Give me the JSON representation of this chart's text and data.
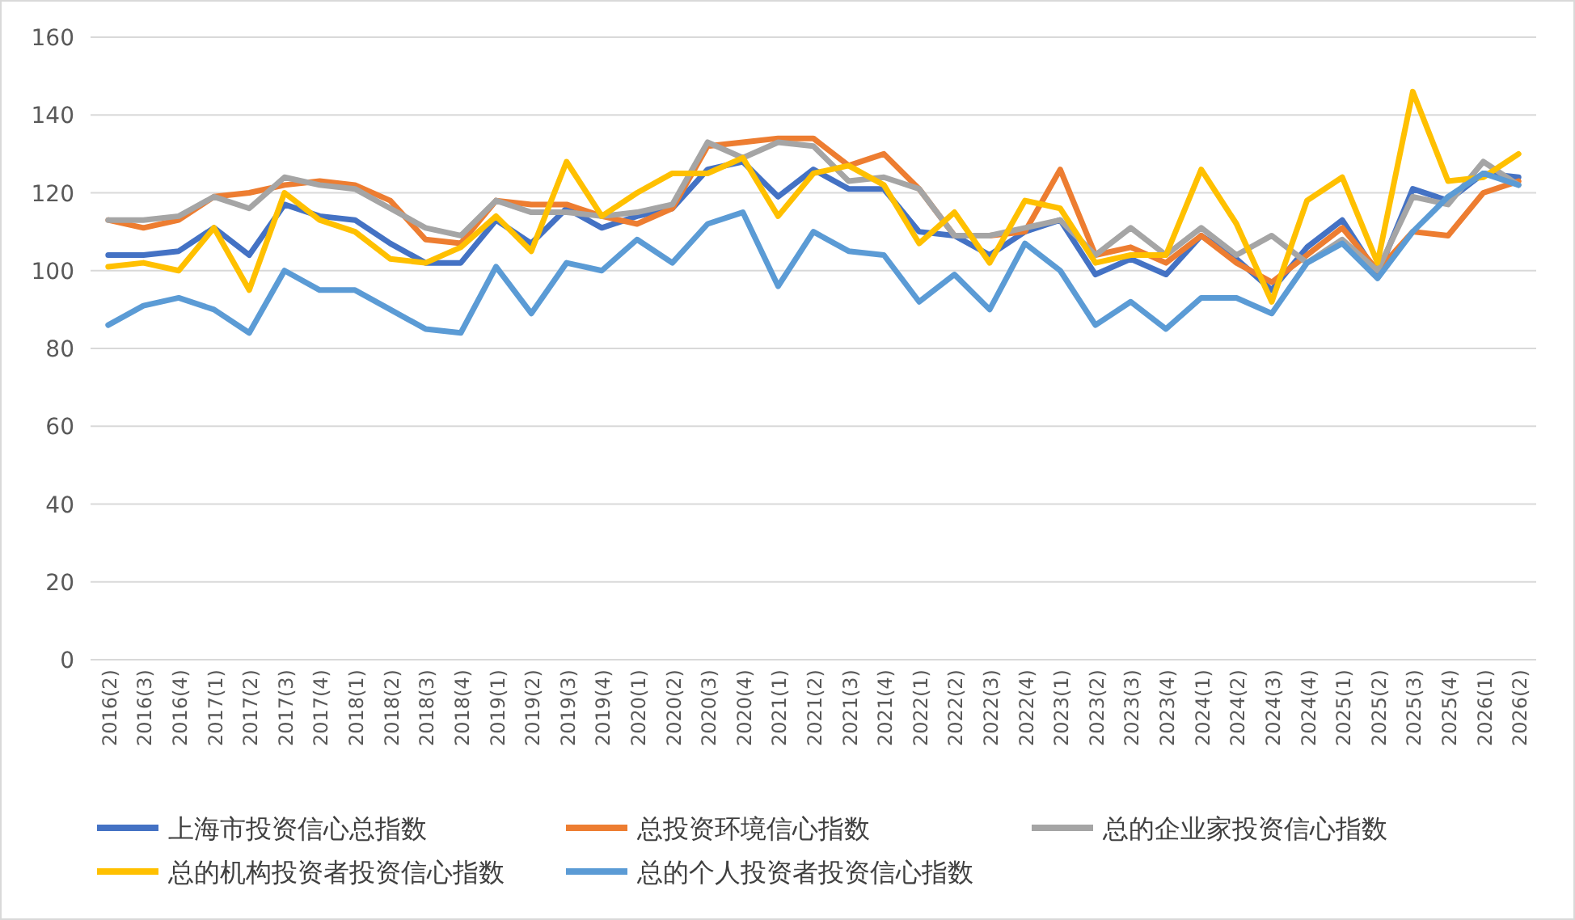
{
  "chart_data": {
    "type": "line",
    "categories": [
      "2016(2)",
      "2016(3)",
      "2016(4)",
      "2017(1)",
      "2017(2)",
      "2017(3)",
      "2017(4)",
      "2018(1)",
      "2018(2)",
      "2018(3)",
      "2018(4)",
      "2019(1)",
      "2019(2)",
      "2019(3)",
      "2019(4)",
      "2020(1)",
      "2020(2)",
      "2020(3)",
      "2020(4)",
      "2021(1)",
      "2021(2)",
      "2021(3)",
      "2021(4)",
      "2022(1)",
      "2022(2)",
      "2022(3)",
      "2022(4)",
      "2023(1)",
      "2023(2)",
      "2023(3)",
      "2023(4)",
      "2024(1)",
      "2024(2)",
      "2024(3)",
      "2024(4)",
      "2025(1)",
      "2025(2)",
      "2025(3)",
      "2025(4)",
      "2026(1)",
      "2026(2)"
    ],
    "series": [
      {
        "name": "上海市投资信心总指数",
        "color": "#4472c4",
        "values": [
          104,
          104,
          105,
          111,
          104,
          117,
          114,
          113,
          107,
          102,
          102,
          113,
          107,
          116,
          111,
          114,
          116,
          126,
          128,
          119,
          126,
          121,
          121,
          110,
          109,
          104,
          110,
          113,
          99,
          103,
          99,
          109,
          103,
          95,
          106,
          113,
          99,
          121,
          118,
          125,
          124
        ]
      },
      {
        "name": "总投资环境信心指数",
        "color": "#ed7d31",
        "values": [
          113,
          111,
          113,
          119,
          120,
          122,
          123,
          122,
          118,
          108,
          107,
          118,
          117,
          117,
          114,
          112,
          116,
          132,
          133,
          134,
          134,
          127,
          130,
          121,
          109,
          109,
          110,
          126,
          104,
          106,
          102,
          109,
          102,
          97,
          104,
          111,
          100,
          110,
          109,
          120,
          123
        ]
      },
      {
        "name": "总的企业家投资信心指数",
        "color": "#a5a5a5",
        "values": [
          113,
          113,
          114,
          119,
          116,
          124,
          122,
          121,
          116,
          111,
          109,
          118,
          115,
          115,
          114,
          115,
          117,
          133,
          129,
          133,
          132,
          123,
          124,
          121,
          109,
          109,
          111,
          113,
          104,
          111,
          104,
          111,
          104,
          109,
          102,
          108,
          100,
          119,
          117,
          128,
          122
        ]
      },
      {
        "name": "总的机构投资者投资信心指数",
        "color": "#ffc000",
        "values": [
          101,
          102,
          100,
          111,
          95,
          120,
          113,
          110,
          103,
          102,
          106,
          114,
          105,
          128,
          114,
          120,
          125,
          125,
          129,
          114,
          125,
          127,
          122,
          107,
          115,
          102,
          118,
          116,
          102,
          104,
          104,
          126,
          112,
          92,
          118,
          124,
          102,
          146,
          123,
          124,
          130
        ]
      },
      {
        "name": "总的个人投资者投资信心指数",
        "color": "#5b9bd5",
        "values": [
          86,
          91,
          93,
          90,
          84,
          100,
          95,
          95,
          90,
          85,
          84,
          101,
          89,
          102,
          100,
          108,
          102,
          112,
          115,
          96,
          110,
          105,
          104,
          92,
          99,
          90,
          107,
          100,
          86,
          92,
          85,
          93,
          93,
          89,
          102,
          107,
          98,
          110,
          119,
          125,
          122
        ]
      }
    ],
    "ylim": [
      0,
      160
    ],
    "yticks": [
      0,
      20,
      40,
      60,
      80,
      100,
      120,
      140,
      160
    ],
    "grid": "y",
    "legend": "bottom"
  }
}
